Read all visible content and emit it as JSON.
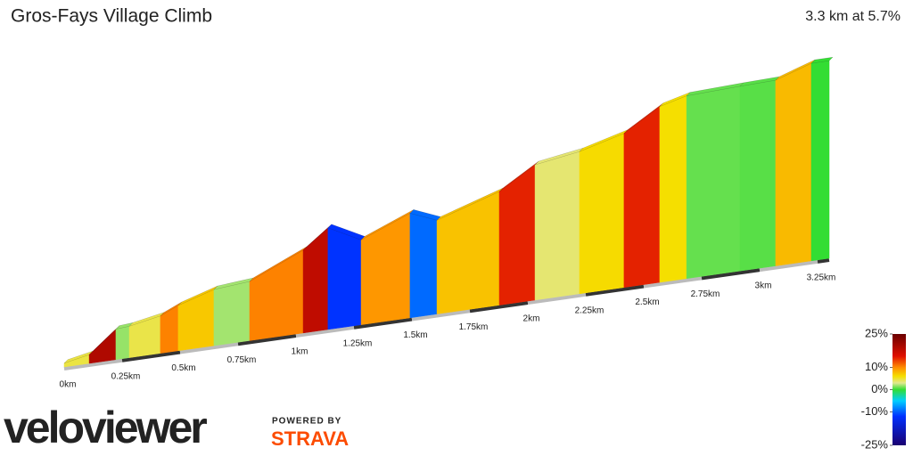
{
  "chart_data": {
    "type": "elevation-profile",
    "title": "Gros-Fays Village Climb",
    "subtitle": "3.3 km at 5.7%",
    "x": [
      0,
      0.108,
      0.223,
      0.281,
      0.415,
      0.492,
      0.646,
      0.8,
      1.031,
      1.138,
      1.281,
      1.492,
      1.608,
      1.877,
      2.031,
      2.223,
      2.415,
      2.569,
      2.685,
      2.915,
      3.069,
      3.223,
      3.3
    ],
    "elevation": [
      2,
      7,
      29,
      30,
      36,
      44,
      55,
      58,
      82,
      101,
      84,
      104,
      93,
      113,
      135,
      142,
      154,
      176,
      183,
      185,
      186,
      198,
      198
    ],
    "xlim": [
      0,
      3.3
    ],
    "xticks": [
      {
        "value": 0,
        "label": "0km"
      },
      {
        "value": 0.25,
        "label": "0.25km"
      },
      {
        "value": 0.5,
        "label": "0.5km"
      },
      {
        "value": 0.75,
        "label": "0.75km"
      },
      {
        "value": 1,
        "label": "1km"
      },
      {
        "value": 1.25,
        "label": "1.25km"
      },
      {
        "value": 1.5,
        "label": "1.5km"
      },
      {
        "value": 1.75,
        "label": "1.75km"
      },
      {
        "value": 2,
        "label": "2km"
      },
      {
        "value": 2.25,
        "label": "2.25km"
      },
      {
        "value": 2.5,
        "label": "2.5km"
      },
      {
        "value": 2.75,
        "label": "2.75km"
      },
      {
        "value": 3,
        "label": "3km"
      },
      {
        "value": 3.25,
        "label": "3.25km"
      }
    ],
    "gradient_scale": {
      "lim": [
        -25,
        25
      ],
      "ticks": [
        {
          "value": 25,
          "label": "25%"
        },
        {
          "value": 10,
          "label": "10%"
        },
        {
          "value": 0,
          "label": "0%"
        },
        {
          "value": -10,
          "label": "-10%"
        },
        {
          "value": -25,
          "label": "-25%"
        }
      ],
      "colors": [
        {
          "value": -25,
          "color": "#1a0070"
        },
        {
          "value": -12,
          "color": "#0030ff"
        },
        {
          "value": -5,
          "color": "#00d0ff"
        },
        {
          "value": 0,
          "color": "#33dd33"
        },
        {
          "value": 3,
          "color": "#e0e890"
        },
        {
          "value": 6,
          "color": "#f5e000"
        },
        {
          "value": 10,
          "color": "#ff8c00"
        },
        {
          "value": 15,
          "color": "#e01000"
        },
        {
          "value": 25,
          "color": "#6a0000"
        }
      ]
    }
  },
  "branding": {
    "logo": "veloviewer",
    "powered": "POWERED BY",
    "partner": "STRAVA"
  }
}
